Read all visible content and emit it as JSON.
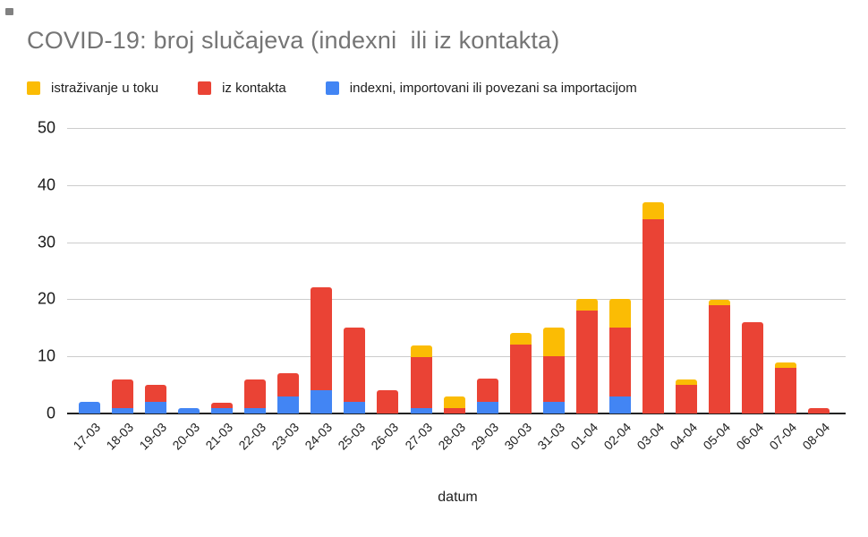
{
  "title": "COVID-19: broj slučajeva (indexni  ili iz kontakta)",
  "colors": {
    "yellow": "#FBBC04",
    "red": "#EA4335",
    "blue": "#4285F4",
    "title_gray": "#757575",
    "gridline": "#cccccc",
    "axis_line": "#222222"
  },
  "legend": [
    {
      "key": "istrazivanje-u-toku",
      "label": "istraživanje u toku",
      "color": "#FBBC04"
    },
    {
      "key": "iz-kontakta",
      "label": "iz kontakta",
      "color": "#EA4335"
    },
    {
      "key": "indexni-importovani",
      "label": "indexni, importovani ili povezani sa importacijom",
      "color": "#4285F4"
    }
  ],
  "chart_data": {
    "type": "bar",
    "stacked": true,
    "title": "COVID-19: broj slučajeva (indexni  ili iz kontakta)",
    "xlabel": "datum",
    "ylabel": "",
    "ylim": [
      0,
      50
    ],
    "yticks": [
      0,
      10,
      20,
      30,
      40,
      50
    ],
    "grid": true,
    "legend_position": "top",
    "categories": [
      "17-03",
      "18-03",
      "19-03",
      "20-03",
      "21-03",
      "22-03",
      "23-03",
      "24-03",
      "25-03",
      "26-03",
      "27-03",
      "28-03",
      "29-03",
      "30-03",
      "31-03",
      "01-04",
      "02-04",
      "03-04",
      "04-04",
      "05-04",
      "06-04",
      "07-04",
      "08-04"
    ],
    "series": [
      {
        "name": "indexni, importovani ili povezani sa importacijom",
        "key": "indexni-importovani",
        "color": "#4285F4",
        "stack_order": 1,
        "values": [
          2,
          1,
          2,
          1,
          1,
          1,
          3,
          4,
          2,
          0,
          1,
          0,
          2,
          0,
          2,
          0,
          3,
          0,
          0,
          0,
          0,
          0,
          0
        ]
      },
      {
        "name": "iz kontakta",
        "key": "iz-kontakta",
        "color": "#EA4335",
        "stack_order": 2,
        "values": [
          0,
          5,
          3,
          0,
          1,
          5,
          4,
          18,
          13,
          4,
          9,
          1,
          4,
          12,
          8,
          18,
          12,
          34,
          5,
          19,
          16,
          8,
          1
        ]
      },
      {
        "name": "istraživanje u toku",
        "key": "istrazivanje-u-toku",
        "color": "#FBBC04",
        "stack_order": 3,
        "values": [
          0,
          0,
          0,
          0,
          0,
          0,
          0,
          0,
          0,
          0,
          2,
          2,
          0,
          2,
          5,
          2,
          5,
          3,
          1,
          1,
          0,
          1,
          0
        ]
      }
    ],
    "totals": [
      2,
      6,
      5,
      1,
      2,
      6,
      7,
      22,
      15,
      4,
      12,
      3,
      6,
      14,
      15,
      20,
      20,
      37,
      6,
      20,
      16,
      9,
      1
    ]
  }
}
